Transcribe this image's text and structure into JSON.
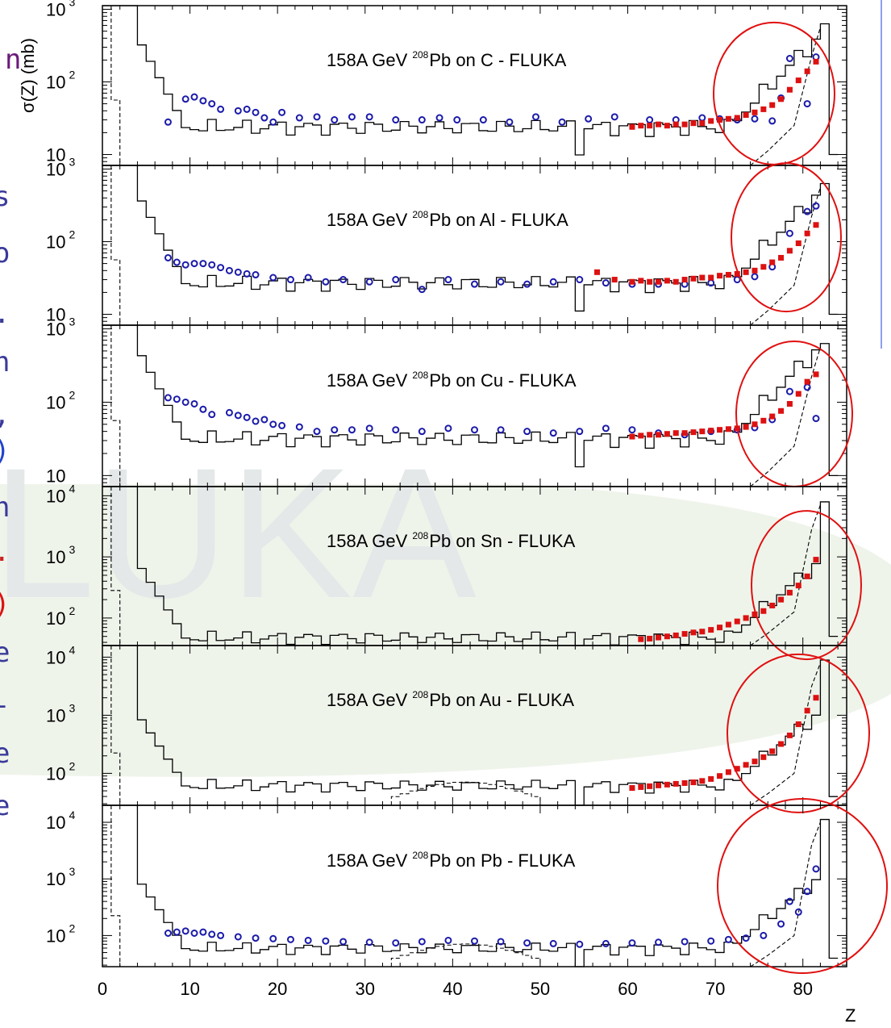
{
  "side_text": {
    "chars": [
      {
        "ch": "n",
        "color": "#6a1a7a"
      },
      {
        "ch": "s",
        "color": "#3a3a9a"
      },
      {
        "ch": "o",
        "color": "#3a3a9a"
      },
      {
        "ch": ".",
        "color": "#3a3a9a"
      },
      {
        "ch": "n",
        "color": "#3a3a9a"
      },
      {
        "ch": ",",
        "color": "#3a3a9a"
      },
      {
        "ch": ")",
        "color": "#2244cc"
      },
      {
        "ch": "n",
        "color": "#3a3a9a"
      },
      {
        "ch": ".",
        "color": "#cc2222"
      },
      {
        "ch": ")",
        "color": "#dd1111"
      },
      {
        "ch": "e",
        "color": "#3a3a9a"
      },
      {
        "ch": "-",
        "color": "#3a3a9a"
      },
      {
        "ch": "e",
        "color": "#3a3a9a"
      },
      {
        "ch": "e",
        "color": "#3a3a9a"
      }
    ]
  },
  "watermark": {
    "text": "LUKA",
    "color": "#e8ecec"
  },
  "colors": {
    "frame": "#000000",
    "exp_blue": "#1a1aaa",
    "exp_red": "#dd1111",
    "circle": "#e01010",
    "band": "#e6eee0",
    "right_line": "#8fa0ee"
  },
  "chart_data": {
    "type": "scatter",
    "xlabel": "Z",
    "ylabel": "σ(Z) (mb)",
    "xlim": [
      0,
      85
    ],
    "xticks": [
      0,
      10,
      20,
      30,
      40,
      50,
      60,
      70,
      80
    ],
    "panels": [
      {
        "title_prefix": "158A GeV",
        "title_sup": "208",
        "title_suffix": "Pb on C - FLUKA",
        "ytick_labels": [
          {
            "base": "10",
            "exp": "3",
            "value": 1000
          },
          {
            "base": "10",
            "exp": "2",
            "value": 100
          },
          {
            "base": "10",
            "exp": "",
            "value": 10
          }
        ],
        "ylim_log10": [
          0.85,
          3.05
        ],
        "fluka_start": 20000,
        "fluka_plateau": 24,
        "dashed_mid": false,
        "series": [
          {
            "name": "blue",
            "x": [
              7,
              9,
              10,
              11,
              12,
              13,
              15,
              16,
              17,
              18,
              19,
              20,
              22,
              24,
              26,
              28,
              30,
              33,
              36,
              38,
              40,
              43,
              46,
              49,
              52,
              55,
              58,
              62,
              65,
              68,
              70,
              72,
              74,
              76,
              77,
              78,
              80,
              81
            ],
            "y": [
              28,
              58,
              62,
              55,
              50,
              42,
              40,
              42,
              38,
              32,
              28,
              38,
              32,
              33,
              30,
              33,
              33,
              30,
              30,
              32,
              30,
              30,
              28,
              33,
              28,
              31,
              33,
              30,
              30,
              32,
              31,
              30,
              31,
              29,
              60,
              210,
              50,
              220
            ]
          },
          {
            "name": "red",
            "x": [
              60,
              61,
              62,
              63,
              64,
              65,
              66,
              67,
              68,
              69,
              70,
              71,
              72,
              73,
              74,
              75,
              76,
              77,
              78,
              79,
              80,
              81
            ],
            "y": [
              24,
              25,
              25,
              26,
              25,
              26,
              26,
              27,
              27,
              29,
              30,
              31,
              32,
              35,
              38,
              42,
              48,
              58,
              78,
              105,
              140,
              190
            ]
          }
        ]
      },
      {
        "title_prefix": "158A GeV",
        "title_sup": "208",
        "title_suffix": "Pb on Al - FLUKA",
        "ytick_labels": [
          {
            "base": "10",
            "exp": "3",
            "value": 1000
          },
          {
            "base": "10",
            "exp": "2",
            "value": 100
          },
          {
            "base": "10",
            "exp": "",
            "value": 10
          }
        ],
        "ylim_log10": [
          0.85,
          3.05
        ],
        "fluka_start": 20000,
        "fluka_plateau": 27,
        "dashed_mid": false,
        "series": [
          {
            "name": "blue",
            "x": [
              7,
              8,
              9,
              10,
              11,
              12,
              13,
              14,
              15,
              16,
              17,
              19,
              21,
              23,
              25,
              27,
              30,
              33,
              36,
              39,
              42,
              45,
              48,
              51,
              54,
              57,
              60,
              63,
              66,
              69,
              72,
              74,
              76,
              78,
              80,
              81
            ],
            "y": [
              60,
              52,
              48,
              50,
              50,
              48,
              44,
              40,
              38,
              36,
              35,
              32,
              30,
              32,
              28,
              30,
              28,
              30,
              22,
              30,
              26,
              28,
              26,
              28,
              30,
              27,
              26,
              26,
              26,
              27,
              30,
              33,
              45,
              130,
              260,
              310
            ]
          },
          {
            "name": "red",
            "x": [
              56,
              58,
              60,
              61,
              62,
              63,
              64,
              65,
              66,
              67,
              68,
              69,
              70,
              71,
              72,
              73,
              74,
              75,
              76,
              77,
              78,
              79,
              80,
              81
            ],
            "y": [
              38,
              30,
              28,
              29,
              28,
              28,
              29,
              28,
              30,
              31,
              32,
              32,
              34,
              35,
              36,
              38,
              40,
              45,
              52,
              60,
              75,
              95,
              130,
              170
            ]
          }
        ]
      },
      {
        "title_prefix": "158A GeV",
        "title_sup": "208",
        "title_suffix": "Pb on Cu - FLUKA",
        "ytick_labels": [
          {
            "base": "10",
            "exp": "3",
            "value": 1000
          },
          {
            "base": "10",
            "exp": "2",
            "value": 100
          },
          {
            "base": "10",
            "exp": "",
            "value": 10
          }
        ],
        "ylim_log10": [
          0.85,
          3.05
        ],
        "fluka_start": 20000,
        "fluka_plateau": 32,
        "dashed_mid": false,
        "series": [
          {
            "name": "blue",
            "x": [
              7,
              8,
              9,
              10,
              11,
              12,
              14,
              15,
              16,
              17,
              18,
              19,
              20,
              22,
              24,
              26,
              28,
              30,
              33,
              36,
              39,
              42,
              45,
              48,
              51,
              54,
              57,
              60,
              63,
              66,
              69,
              72,
              74,
              76,
              78,
              80,
              81
            ],
            "y": [
              115,
              110,
              100,
              95,
              80,
              68,
              72,
              66,
              62,
              55,
              58,
              50,
              48,
              46,
              40,
              42,
              42,
              44,
              42,
              40,
              44,
              42,
              42,
              40,
              38,
              40,
              44,
              42,
              38,
              36,
              40,
              42,
              45,
              58,
              140,
              160,
              60
            ]
          },
          {
            "name": "red",
            "x": [
              60,
              61,
              62,
              63,
              64,
              65,
              66,
              67,
              68,
              69,
              70,
              71,
              72,
              73,
              74,
              75,
              76,
              77,
              78,
              79,
              80,
              81
            ],
            "y": [
              34,
              35,
              36,
              36,
              37,
              38,
              38,
              39,
              40,
              41,
              42,
              43,
              44,
              46,
              50,
              56,
              64,
              76,
              95,
              130,
              190,
              240
            ]
          }
        ]
      },
      {
        "title_prefix": "158A GeV",
        "title_sup": "208",
        "title_suffix": "Pb on Sn - FLUKA",
        "ytick_labels": [
          {
            "base": "10",
            "exp": "4",
            "value": 10000
          },
          {
            "base": "10",
            "exp": "3",
            "value": 1000
          },
          {
            "base": "10",
            "exp": "2",
            "value": 100
          }
        ],
        "ylim_log10": [
          1.55,
          4.15
        ],
        "fluka_start": 60000,
        "fluka_plateau": 48,
        "dashed_mid": false,
        "series": [
          {
            "name": "red",
            "x": [
              61,
              62,
              63,
              64,
              65,
              66,
              67,
              68,
              69,
              70,
              71,
              72,
              73,
              74,
              75,
              76,
              77,
              78,
              79,
              80,
              81
            ],
            "y": [
              45,
              46,
              48,
              50,
              52,
              55,
              58,
              60,
              64,
              70,
              78,
              88,
              100,
              115,
              130,
              160,
              200,
              260,
              340,
              480,
              900
            ]
          }
        ]
      },
      {
        "title_prefix": "158A GeV",
        "title_sup": "208",
        "title_suffix": "Pb on Au - FLUKA",
        "ytick_labels": [
          {
            "base": "10",
            "exp": "4",
            "value": 10000
          },
          {
            "base": "10",
            "exp": "3",
            "value": 1000
          },
          {
            "base": "10",
            "exp": "2",
            "value": 100
          }
        ],
        "ylim_log10": [
          1.45,
          4.2
        ],
        "fluka_start": 60000,
        "fluka_plateau": 62,
        "dashed_mid": true,
        "series": [
          {
            "name": "red",
            "x": [
              60,
              61,
              62,
              63,
              64,
              65,
              66,
              67,
              68,
              69,
              70,
              71,
              72,
              73,
              74,
              75,
              76,
              77,
              78,
              79,
              80,
              81
            ],
            "y": [
              56,
              58,
              60,
              62,
              64,
              66,
              68,
              70,
              74,
              80,
              90,
              105,
              120,
              140,
              160,
              190,
              240,
              320,
              450,
              700,
              1200,
              2000
            ]
          }
        ]
      },
      {
        "title_prefix": "158A GeV",
        "title_sup": "208",
        "title_suffix": "Pb on Pb - FLUKA",
        "ytick_labels": [
          {
            "base": "10",
            "exp": "4",
            "value": 10000
          },
          {
            "base": "10",
            "exp": "3",
            "value": 1000
          },
          {
            "base": "10",
            "exp": "2",
            "value": 100
          }
        ],
        "ylim_log10": [
          1.45,
          4.3
        ],
        "fluka_start": 60000,
        "fluka_plateau": 60,
        "dashed_mid": true,
        "series": [
          {
            "name": "blue",
            "x": [
              7,
              8,
              9,
              10,
              11,
              12,
              13,
              15,
              17,
              19,
              21,
              23,
              25,
              27,
              30,
              33,
              36,
              39,
              42,
              45,
              48,
              51,
              54,
              57,
              60,
              63,
              66,
              69,
              71,
              73,
              75,
              77,
              78,
              79,
              80,
              81
            ],
            "y": [
              110,
              115,
              120,
              110,
              115,
              105,
              100,
              95,
              90,
              88,
              85,
              82,
              80,
              78,
              76,
              74,
              78,
              82,
              80,
              78,
              74,
              72,
              70,
              72,
              74,
              76,
              78,
              80,
              85,
              90,
              100,
              160,
              400,
              260,
              600,
              1500
            ]
          }
        ]
      }
    ]
  }
}
